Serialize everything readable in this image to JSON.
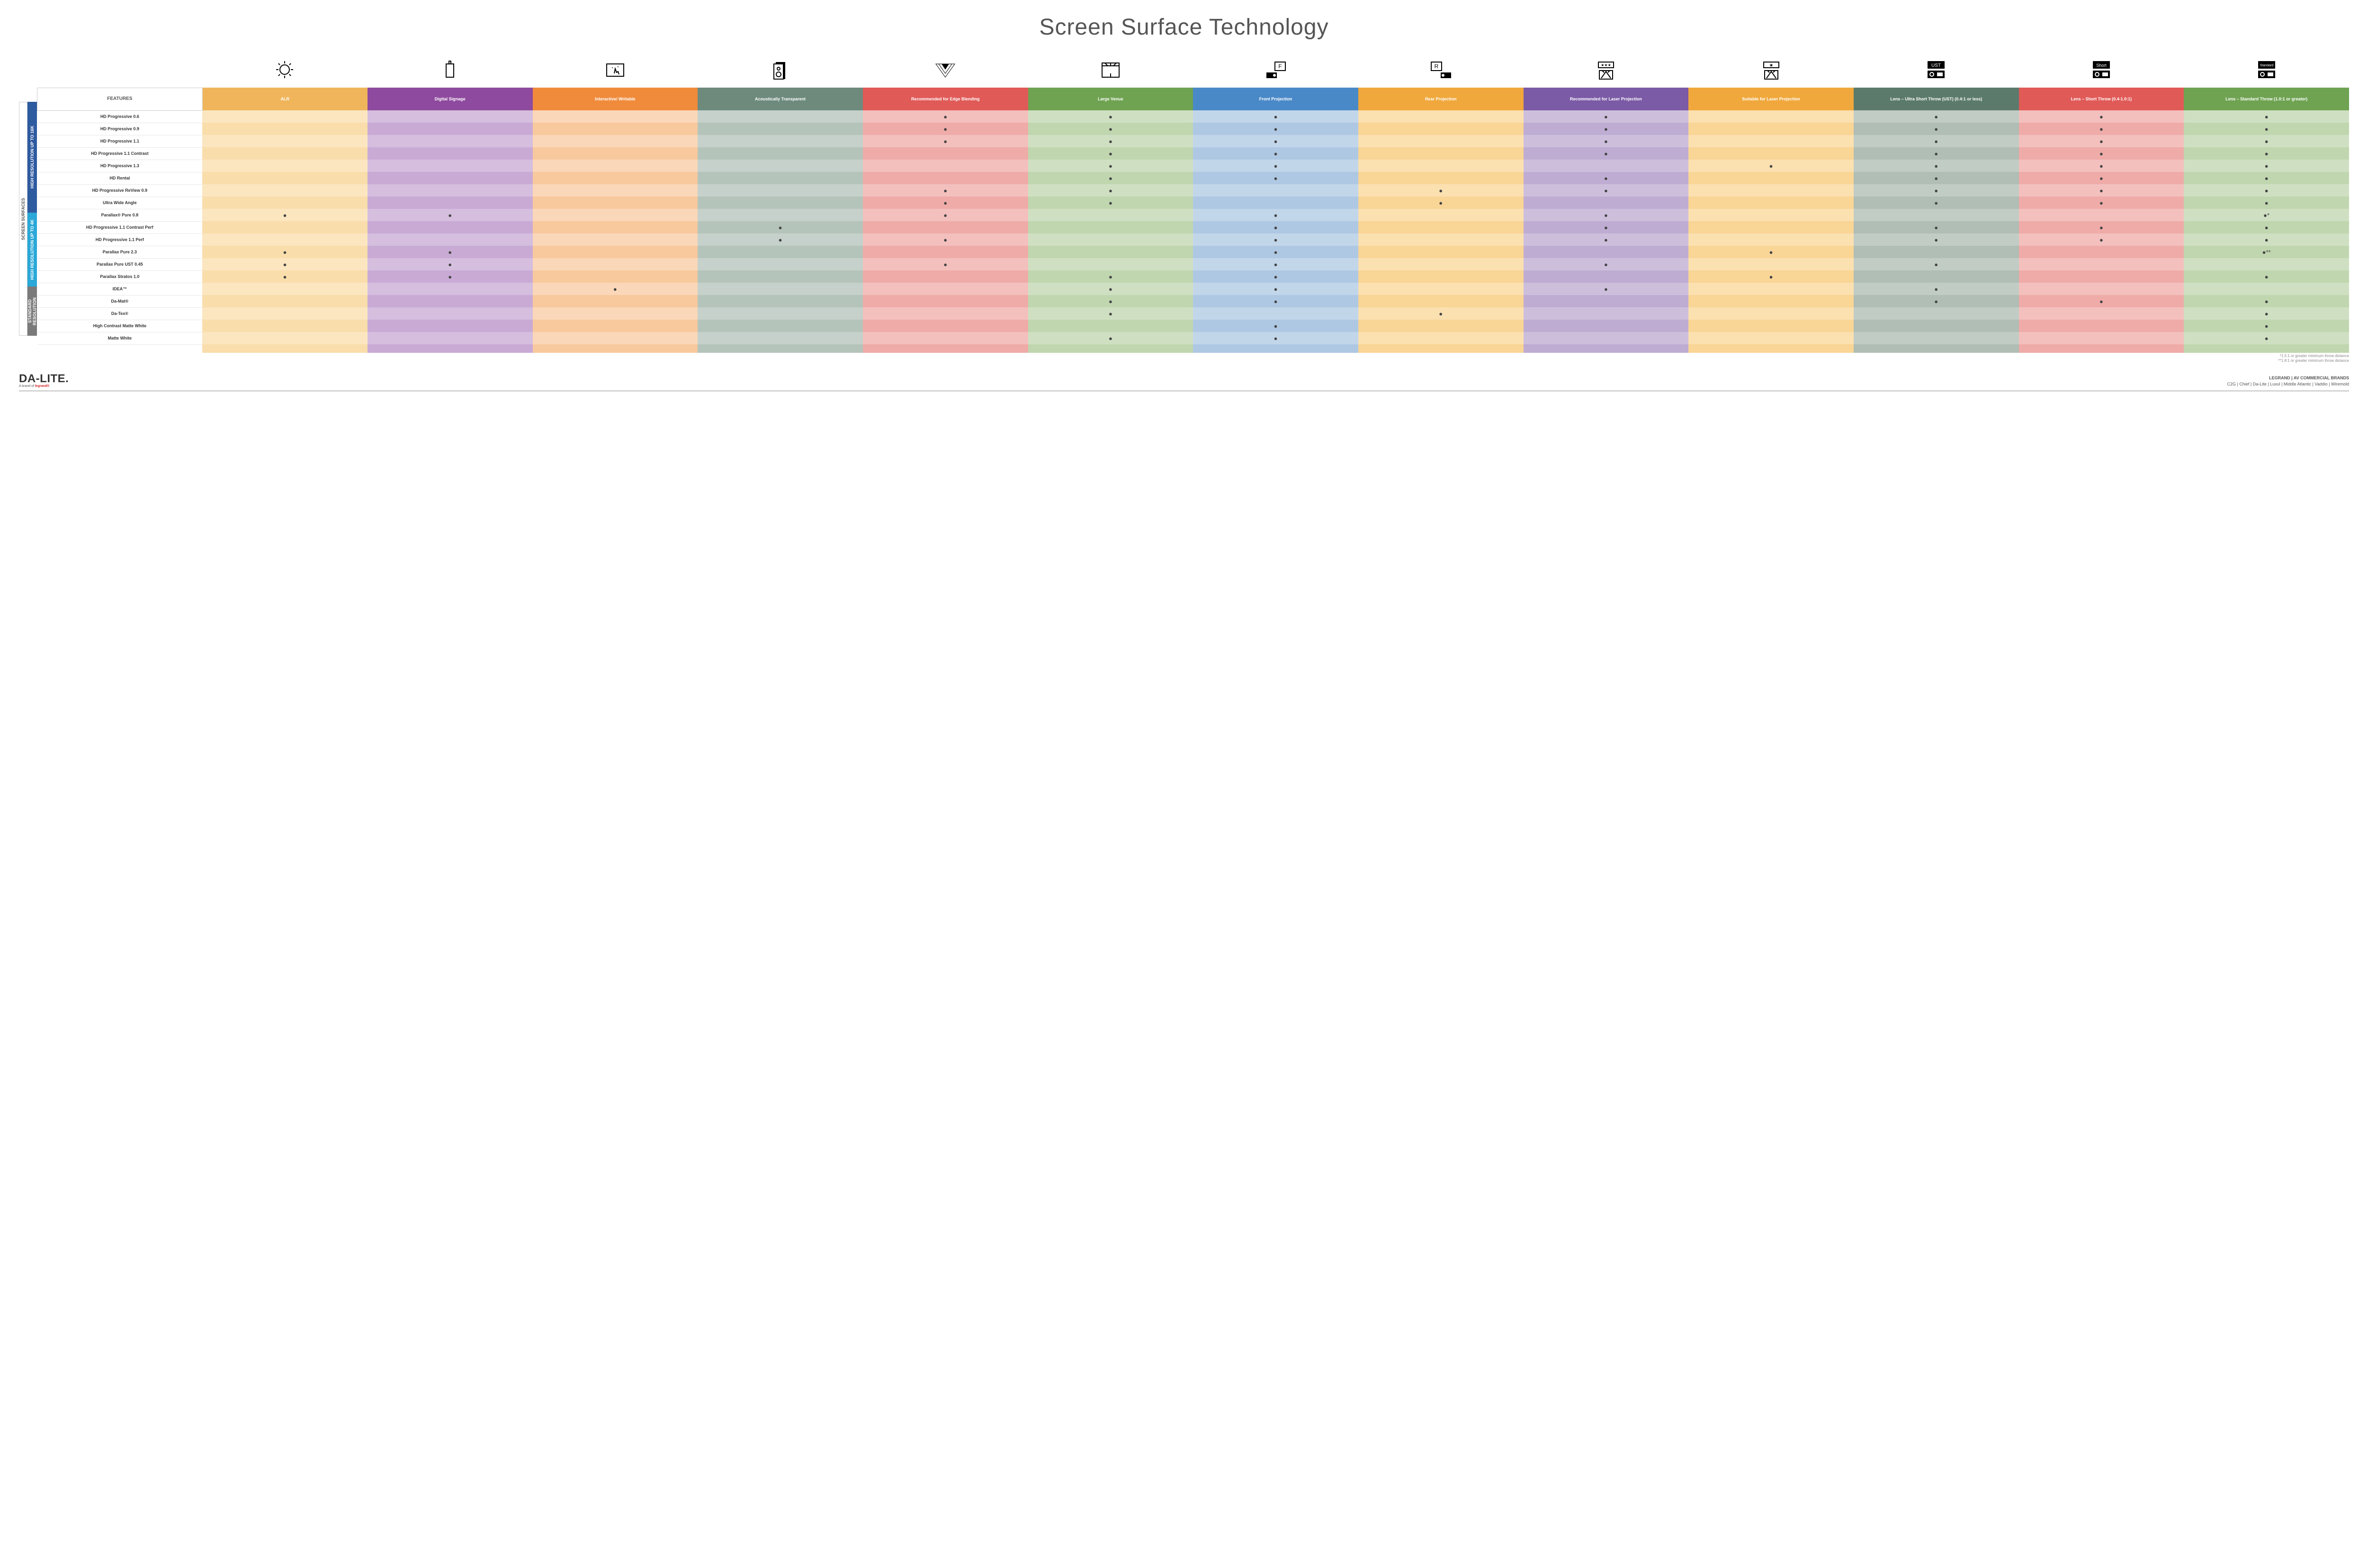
{
  "title": "Screen Surface Technology",
  "colors": {
    "alr": "#f0b55b",
    "digital_signage": "#8e4a9e",
    "interactive": "#f08b3c",
    "acoustic": "#6d8a7d",
    "edge": "#e05a57",
    "large_venue": "#6fa352",
    "front": "#4a89c8",
    "rear": "#f0a83c",
    "rec_laser": "#7b5aa6",
    "suit_laser": "#f0a83c",
    "ust": "#5b7a6b",
    "short": "#e05a57",
    "std": "#6fa352",
    "group_16k": "#2e5aa0",
    "group_4k": "#2aa8d8",
    "group_std": "#7a7a7a"
  },
  "tints": {
    "alr": [
      "#fbe6c0",
      "#f9ddab"
    ],
    "digital": [
      "#d5bede",
      "#c9aad5"
    ],
    "interactive": [
      "#fad7b8",
      "#f8c99d"
    ],
    "acoustic": [
      "#c5d1ca",
      "#b5c4bb"
    ],
    "edge": [
      "#f3c0be",
      "#efaba8"
    ],
    "large": [
      "#cfe0c2",
      "#c0d6af"
    ],
    "front": [
      "#c2d6ea",
      "#aec8e3"
    ],
    "rear": [
      "#fbe0b0",
      "#f9d596"
    ],
    "rec_laser": [
      "#cdbfdc",
      "#beacd2"
    ],
    "suit_laser": [
      "#fbe0b0",
      "#f9d596"
    ],
    "ust": [
      "#c1ccc5",
      "#b0beb5"
    ],
    "short": [
      "#f3c0be",
      "#efaba8"
    ],
    "std": [
      "#cfe0c2",
      "#c0d6af"
    ]
  },
  "column_keys": [
    "alr",
    "digital",
    "interactive",
    "acoustic",
    "edge",
    "large",
    "front",
    "rear",
    "rec_laser",
    "suit_laser",
    "ust",
    "short",
    "std"
  ],
  "columns": [
    {
      "key": "features",
      "label": "FEATURES"
    },
    {
      "key": "alr",
      "label": "ALR",
      "hdr": "alr"
    },
    {
      "key": "digital",
      "label": "Digital Signage",
      "hdr": "digital_signage"
    },
    {
      "key": "interactive",
      "label": "Interactive/ Writable",
      "hdr": "interactive"
    },
    {
      "key": "acoustic",
      "label": "Acoustically Transparent",
      "hdr": "acoustic"
    },
    {
      "key": "edge",
      "label": "Recommended for Edge Blending",
      "hdr": "edge"
    },
    {
      "key": "large",
      "label": "Large Venue",
      "hdr": "large_venue"
    },
    {
      "key": "front",
      "label": "Front Projection",
      "hdr": "front"
    },
    {
      "key": "rear",
      "label": "Rear Projection",
      "hdr": "rear"
    },
    {
      "key": "rec_laser",
      "label": "Recommended for Laser Projection",
      "hdr": "rec_laser"
    },
    {
      "key": "suit_laser",
      "label": "Suitable for Laser Projection",
      "hdr": "suit_laser"
    },
    {
      "key": "ust",
      "label": "Lens – Ultra Short Throw (UST) (0.4:1 or less)",
      "hdr": "ust"
    },
    {
      "key": "short",
      "label": "Lens – Short Throw (0.4-1.0:1)",
      "hdr": "short"
    },
    {
      "key": "std",
      "label": "Lens – Standard Throw (1.0:1 or greater)",
      "hdr": "std"
    }
  ],
  "side_outer": "SCREEN SURFACES",
  "groups": [
    {
      "key": "g16k",
      "label": "HIGH RESOLUTION UP TO 16K",
      "color": "group_16k",
      "rows": [
        {
          "name": "HD Progressive 0.6",
          "cells": [
            "",
            "",
            "",
            "",
            "●",
            "●",
            "●",
            "",
            "●",
            "",
            "●",
            "●",
            "●"
          ]
        },
        {
          "name": "HD Progressive 0.9",
          "cells": [
            "",
            "",
            "",
            "",
            "●",
            "●",
            "●",
            "",
            "●",
            "",
            "●",
            "●",
            "●"
          ]
        },
        {
          "name": "HD Progressive 1.1",
          "cells": [
            "",
            "",
            "",
            "",
            "●",
            "●",
            "●",
            "",
            "●",
            "",
            "●",
            "●",
            "●"
          ]
        },
        {
          "name": "HD Progressive 1.1 Contrast",
          "cells": [
            "",
            "",
            "",
            "",
            "",
            "●",
            "●",
            "",
            "●",
            "",
            "●",
            "●",
            "●"
          ]
        },
        {
          "name": "HD Progressive 1.3",
          "cells": [
            "",
            "",
            "",
            "",
            "",
            "●",
            "●",
            "",
            "",
            "●",
            "●",
            "●",
            "●"
          ]
        },
        {
          "name": "HD Rental",
          "cells": [
            "",
            "",
            "",
            "",
            "",
            "●",
            "●",
            "",
            "●",
            "",
            "●",
            "●",
            "●"
          ]
        },
        {
          "name": "HD Progressive ReView 0.9",
          "cells": [
            "",
            "",
            "",
            "",
            "●",
            "●",
            "",
            "●",
            "●",
            "",
            "●",
            "●",
            "●"
          ]
        },
        {
          "name": "Ultra Wide Angle",
          "cells": [
            "",
            "",
            "",
            "",
            "●",
            "●",
            "",
            "●",
            "",
            "",
            "●",
            "●",
            "●"
          ]
        },
        {
          "name": "Parallax® Pure 0.8",
          "cells": [
            "●",
            "●",
            "",
            "",
            "●",
            "",
            "●",
            "",
            "●",
            "",
            "",
            "",
            "●*"
          ]
        }
      ]
    },
    {
      "key": "g4k",
      "label": "HIGH RESOLUTION UP TO 4K",
      "color": "group_4k",
      "rows": [
        {
          "name": "HD Progressive 1.1 Contrast Perf",
          "cells": [
            "",
            "",
            "",
            "●",
            "",
            "",
            "●",
            "",
            "●",
            "",
            "●",
            "●",
            "●"
          ]
        },
        {
          "name": "HD Progressive 1.1 Perf",
          "cells": [
            "",
            "",
            "",
            "●",
            "●",
            "",
            "●",
            "",
            "●",
            "",
            "●",
            "●",
            "●"
          ]
        },
        {
          "name": "Parallax Pure 2.3",
          "cells": [
            "●",
            "●",
            "",
            "",
            "",
            "",
            "●",
            "",
            "",
            "●",
            "",
            "",
            "●**"
          ]
        },
        {
          "name": "Parallax Pure UST 0.45",
          "cells": [
            "●",
            "●",
            "",
            "",
            "●",
            "",
            "●",
            "",
            "●",
            "",
            "●",
            "",
            ""
          ]
        },
        {
          "name": "Parallax Stratos 1.0",
          "cells": [
            "●",
            "●",
            "",
            "",
            "",
            "●",
            "●",
            "",
            "",
            "●",
            "",
            "",
            "●"
          ]
        },
        {
          "name": "IDEA™",
          "cells": [
            "",
            "",
            "●",
            "",
            "",
            "●",
            "●",
            "",
            "●",
            "",
            "●",
            "",
            ""
          ]
        }
      ]
    },
    {
      "key": "gstd",
      "label": "STANDARD RESOLUTION",
      "color": "group_std",
      "rows": [
        {
          "name": "Da-Mat®",
          "cells": [
            "",
            "",
            "",
            "",
            "",
            "●",
            "●",
            "",
            "",
            "",
            "●",
            "●",
            "●"
          ]
        },
        {
          "name": "Da-Tex®",
          "cells": [
            "",
            "",
            "",
            "",
            "",
            "●",
            "",
            "●",
            "",
            "",
            "",
            "",
            "●"
          ]
        },
        {
          "name": "High Contrast Matte White",
          "cells": [
            "",
            "",
            "",
            "",
            "",
            "",
            "●",
            "",
            "",
            "",
            "",
            "",
            "●"
          ]
        },
        {
          "name": "Matte White",
          "cells": [
            "",
            "",
            "",
            "",
            "",
            "●",
            "●",
            "",
            "",
            "",
            "",
            "",
            "●"
          ]
        }
      ]
    }
  ],
  "footnotes": [
    "*1.5:1 or greater minimum throw distance",
    "**1.8:1 or greater minimum throw distance"
  ],
  "footer": {
    "logo_main": "DA‑LITE.",
    "logo_sub_prefix": "A brand of ",
    "logo_sub_brand": "legrand®",
    "brands_title": "LEGRAND | AV COMMERCIAL BRANDS",
    "brands_list": "C2G  |  Chief  |  Da-Lite  |  Luxul  |  Middle Atlantic  |  Vaddio  |  Wiremold"
  },
  "icons": [
    "bulb",
    "signage",
    "touch",
    "speaker",
    "blend",
    "venue",
    "front_proj",
    "rear_proj",
    "laser_rec",
    "laser_suit",
    "ust_proj",
    "short_proj",
    "std_proj"
  ]
}
